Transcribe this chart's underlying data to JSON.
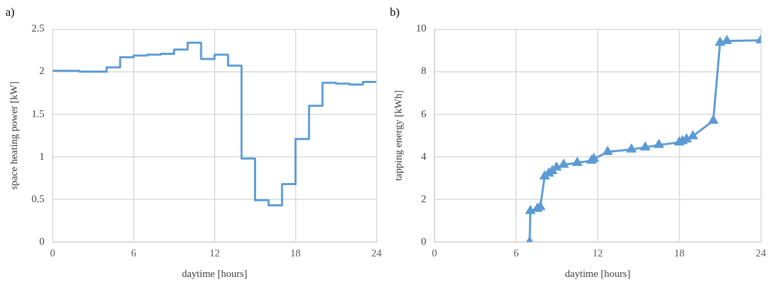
{
  "chart_data": [
    {
      "type": "step",
      "title": "a)",
      "xlabel": "daytime [hours]",
      "ylabel": "space heating power [kW]",
      "x": [
        0,
        1,
        2,
        3,
        4,
        5,
        6,
        7,
        8,
        9,
        10,
        11,
        12,
        13,
        14,
        15,
        16,
        17,
        18,
        19,
        20,
        21,
        22,
        23,
        24
      ],
      "series": [
        {
          "color": "#5b9bd5",
          "values": [
            2.01,
            2.01,
            2.0,
            2.0,
            2.05,
            2.17,
            2.19,
            2.2,
            2.21,
            2.26,
            2.34,
            2.15,
            2.2,
            2.07,
            0.98,
            0.49,
            0.43,
            0.68,
            1.21,
            1.6,
            1.87,
            1.86,
            1.85,
            1.88,
            1.88
          ]
        }
      ],
      "xlim": [
        0,
        24
      ],
      "xticks": [
        0,
        6,
        12,
        18,
        24
      ],
      "ylim": [
        0,
        2.5
      ],
      "yticks": [
        0,
        0.5,
        1,
        1.5,
        2,
        2.5
      ],
      "grid": true,
      "legend": false,
      "marker": "none"
    },
    {
      "type": "line",
      "title": "b)",
      "xlabel": "daytime [hours]",
      "ylabel": "tapping energy [kWh]",
      "x": [
        7.0,
        7.05,
        7.56,
        7.78,
        8.1,
        8.4,
        8.66,
        8.97,
        9.5,
        10.5,
        11.55,
        11.72,
        12.73,
        14.48,
        15.5,
        16.5,
        18.0,
        18.24,
        18.54,
        19.0,
        20.5,
        21.0,
        21.5,
        24
      ],
      "series": [
        {
          "color": "#5b9bd5",
          "values": [
            0,
            1.46,
            1.56,
            1.64,
            3.08,
            3.22,
            3.33,
            3.5,
            3.63,
            3.72,
            3.82,
            3.9,
            4.23,
            4.35,
            4.44,
            4.56,
            4.68,
            4.74,
            4.82,
            4.97,
            5.7,
            9.36,
            9.44,
            9.47
          ]
        }
      ],
      "xlim": [
        0,
        24
      ],
      "xticks": [
        0,
        6,
        12,
        18,
        24
      ],
      "ylim": [
        0,
        10
      ],
      "yticks": [
        0,
        2,
        4,
        6,
        8,
        10
      ],
      "grid": true,
      "legend": false,
      "marker": "triangle"
    }
  ]
}
